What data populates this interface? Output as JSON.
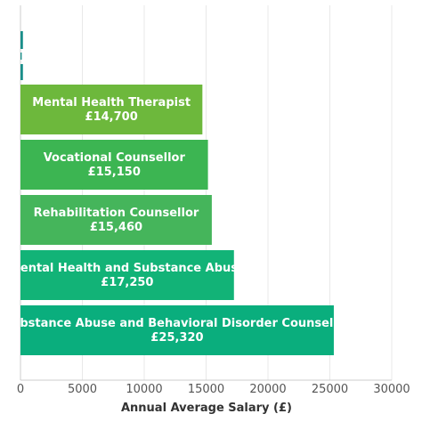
{
  "chart_data": {
    "type": "bar",
    "orientation": "horizontal",
    "title": "",
    "xlabel": "Annual Average Salary (£)",
    "ylabel": "",
    "xlim": [
      0,
      30000
    ],
    "xticks": [
      0,
      5000,
      10000,
      15000,
      20000,
      25000,
      30000
    ],
    "grid": true,
    "legend": "none",
    "series": [
      {
        "values": [
          25320,
          17250,
          15460,
          15150,
          14700
        ],
        "bar_labels": [
          {
            "name": "Substance Abuse and Behavioral Disorder Counsellor",
            "amount": "£25,320"
          },
          {
            "name": "Mental Health and Substance Abuse",
            "amount": "£17,250"
          },
          {
            "name": "Rehabilitation Counsellor",
            "amount": "£15,460"
          },
          {
            "name": "Vocational Counsellor",
            "amount": "£15,150"
          },
          {
            "name": "Mental Health Therapist",
            "amount": "£14,700"
          }
        ],
        "colors": [
          "#0aae7d",
          "#12b377",
          "#45b55b",
          "#3cb552",
          "#6db83c"
        ]
      }
    ],
    "clipped_top_bar": {
      "value": 200,
      "color": "#1a8f8a"
    }
  }
}
